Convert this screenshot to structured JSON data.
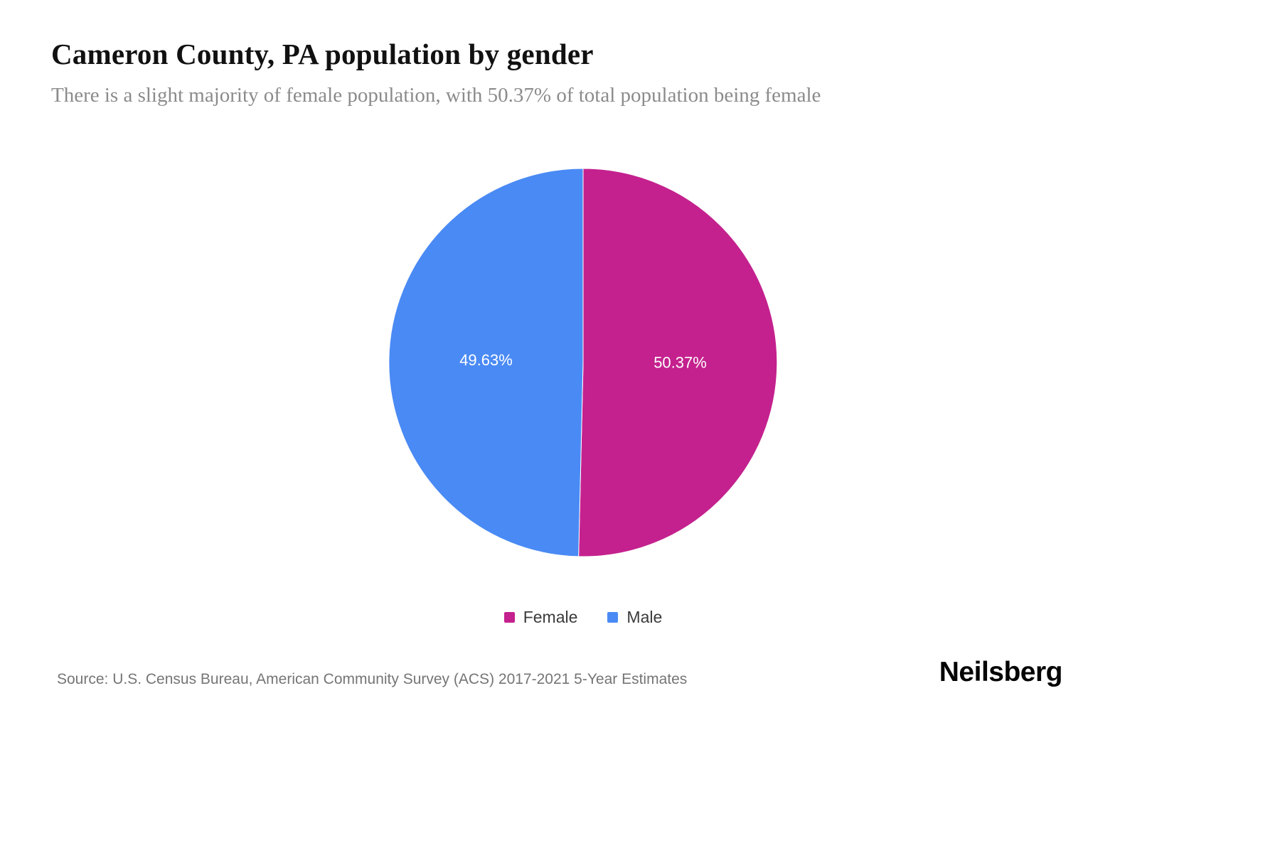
{
  "header": {
    "title": "Cameron County, PA population by gender",
    "subtitle": "There is a slight majority of female population, with 50.37% of total population being female"
  },
  "chart_data": {
    "type": "pie",
    "title": "Cameron County, PA population by gender",
    "start_angle_deg": -90,
    "direction": "clockwise",
    "legend_position": "bottom",
    "slices": [
      {
        "label": "Female",
        "value": 50.37,
        "display": "50.37%",
        "color": "#c4218e"
      },
      {
        "label": "Male",
        "value": 49.63,
        "display": "49.63%",
        "color": "#4a8af4"
      }
    ]
  },
  "footer": {
    "source": "Source: U.S. Census Bureau, American Community Survey (ACS) 2017-2021 5-Year Estimates",
    "brand": "Neilsberg"
  }
}
